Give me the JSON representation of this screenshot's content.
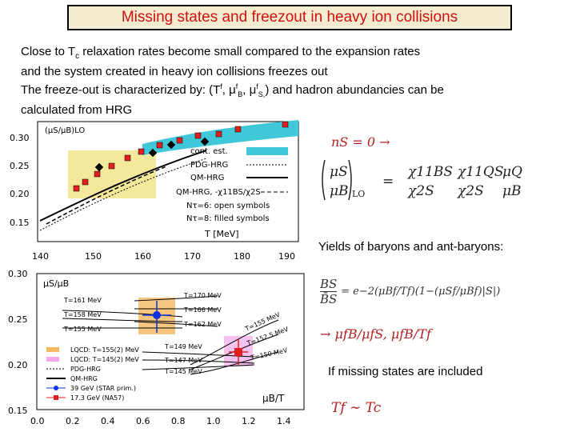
{
  "title": "Missing states and freezout in heavy ion collisions",
  "intro": {
    "line1_a": "Close to T",
    "line1_sub": "c",
    "line1_b": " relaxation rates become small compared to the expansion rates",
    "line2": "and the system created in heavy ion collisions freezes out",
    "line3_a": "The freeze-out is characterized by: (T",
    "line3_b": ", μ",
    "line3_c": ", μ",
    "line3_d": ") and hadron abundancies can be",
    "line4": "calculated from HRG"
  },
  "top_chart": {
    "ylabel": "(μS/μB)LO",
    "xlabel": "T [MeV]",
    "xticks": [
      "140",
      "150",
      "160",
      "170",
      "180",
      "190"
    ],
    "yticks": [
      "0.30",
      "0.25",
      "0.20",
      "0.15"
    ],
    "legend": [
      "cont. est.",
      "PDG-HRG",
      "QM-HRG",
      "QM-HRG, -χ11BS/χ2S",
      "Nτ=6: open symbols",
      "Nτ=8: filled symbols"
    ],
    "colors": {
      "band": "#40c8d8",
      "box": "#f0e070",
      "marker": "#e02020"
    }
  },
  "bottom_chart": {
    "ylabel": "μS/μB",
    "xlabel": "μB/T",
    "xticks": [
      "0.0",
      "0.2",
      "0.4",
      "0.6",
      "0.8",
      "1.0",
      "1.2",
      "1.4"
    ],
    "yticks": [
      "0.30",
      "0.25",
      "0.20",
      "0.15"
    ],
    "curve_labels": [
      "T=161 MeV",
      "T=158 MeV",
      "T=155 MeV",
      "T=170 MeV",
      "T=166 MeV",
      "T=162 MeV",
      "T=149 MeV",
      "T=147 MeV",
      "T=145 MeV",
      "T=155 MeV",
      "T=152.5 MeV",
      "T=150 MeV"
    ],
    "legend": [
      "LQCD: T=155(2) MeV",
      "LQCD: T=145(2) MeV",
      "PDG-HRG",
      "QM-HRG",
      "39 GeV (STAR prim.)",
      "17.3 GeV (NA57)"
    ],
    "colors": {
      "orange": "#f4b860",
      "pink": "#f2a8e8",
      "blue": "#1030d8",
      "red": "#e02020"
    }
  },
  "right": {
    "eq1": "nS = 0 →",
    "muS": "μS",
    "muB": "μB",
    "lo": "LO",
    "chiBS": "χ11BS",
    "chiQS": "χ11QS",
    "chiS": "χ2S",
    "chiS2": "χ2S",
    "muQ": "μQ",
    "muB2": "μB",
    "yields_label": "Yields of baryons and ant-baryons:",
    "ratio_num": "BS",
    "ratio_den": "B̄S",
    "ratio_rhs": "= e−2(μBf/Tf)(1−(μSf/μBf)|S|)",
    "arrow_line": "→ μfB/μfS, μfB/Tf",
    "missing_label": "If missing states are included",
    "final": "Tf ∼ Tc"
  }
}
